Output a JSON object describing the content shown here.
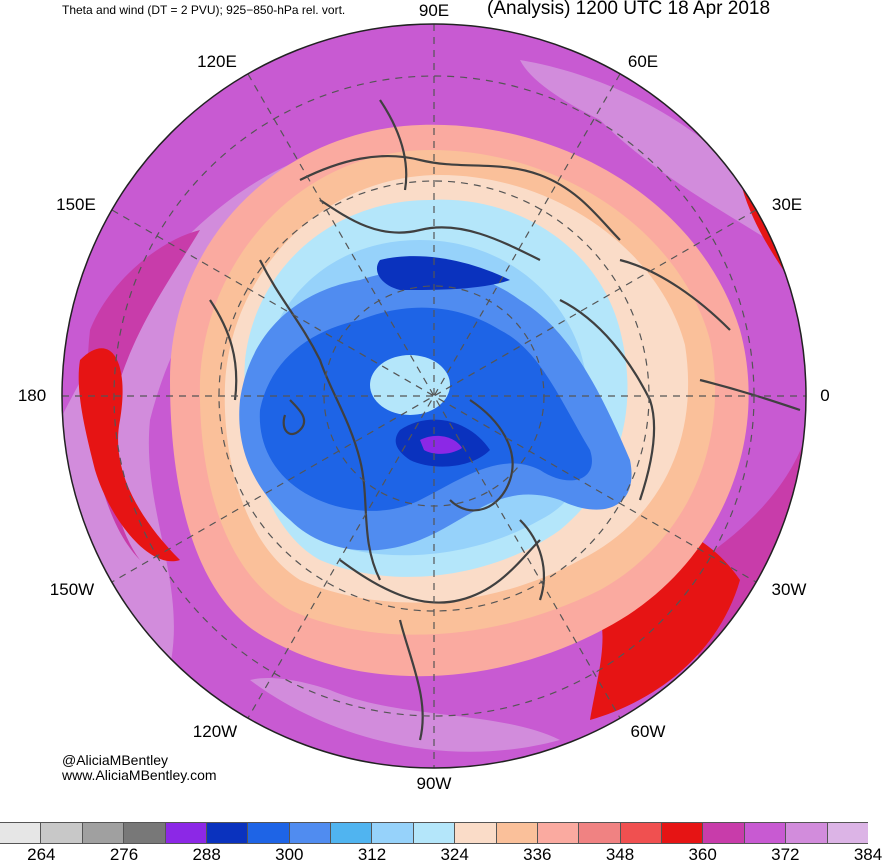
{
  "header": {
    "left_text": "Theta and wind (DT = 2 PVU); 925−850-hPa rel. vort.",
    "right_text": "(Analysis) 1200 UTC 18 Apr 2018"
  },
  "longitude_labels": {
    "top": "90E",
    "upper_left": "120E",
    "upper_right": "60E",
    "mid_upper_left": "150E",
    "mid_upper_right": "30E",
    "left": "180",
    "right": "0",
    "mid_lower_left": "150W",
    "mid_lower_right": "30W",
    "lower_left": "120W",
    "lower_right": "60W",
    "bottom": "90W"
  },
  "credits": {
    "handle": "@AliciaMBentley",
    "website": "www.AliciaMBentley.com"
  },
  "colorbar": {
    "colors": [
      "#e6e6e6",
      "#c8c8c8",
      "#a0a0a0",
      "#787878",
      "#8c28e6",
      "#0a32be",
      "#1e64e6",
      "#508cf0",
      "#50b4f0",
      "#96d2fa",
      "#b4e6fa",
      "#fadcc8",
      "#fac09a",
      "#faaaa0",
      "#f08282",
      "#f05050",
      "#e61414",
      "#c83caa",
      "#c85ad2",
      "#d28cdc",
      "#dcb4e6"
    ],
    "labels": [
      "264",
      "276",
      "288",
      "300",
      "312",
      "324",
      "336",
      "348",
      "360",
      "372",
      "384"
    ]
  },
  "map": {
    "projection": "north-polar-stereographic",
    "field": "potential temperature on dynamic tropopause",
    "colors": {
      "outer_purple": "#c85ad2",
      "light_purple": "#d28cdc",
      "magenta": "#c83caa",
      "red": "#e61414",
      "salmon": "#faaaa0",
      "peach": "#fac09a",
      "light_peach": "#fadcc8",
      "pale_blue": "#b4e6fa",
      "light_blue": "#96d2fa",
      "mid_blue": "#508cf0",
      "blue": "#1e64e6",
      "dark_blue": "#0a32be",
      "violet": "#8c28e6",
      "contour": "#404040"
    }
  }
}
